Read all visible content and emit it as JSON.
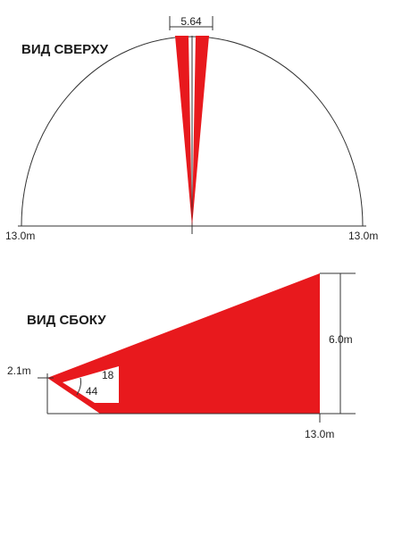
{
  "top_view": {
    "title": "ВИД СВЕРХУ",
    "angle_label": "5.64",
    "left_range_label": "13.0m",
    "right_range_label": "13.0m"
  },
  "side_view": {
    "title": "ВИД СБОКУ",
    "height_label": "6.0m",
    "mount_height_label": "2.1m",
    "inner_angle_label": "18",
    "outer_angle_label": "44",
    "range_label": "13.0m"
  },
  "colors": {
    "detection_zone": "#e8191d",
    "outline": "#333333",
    "background": "#ffffff"
  }
}
